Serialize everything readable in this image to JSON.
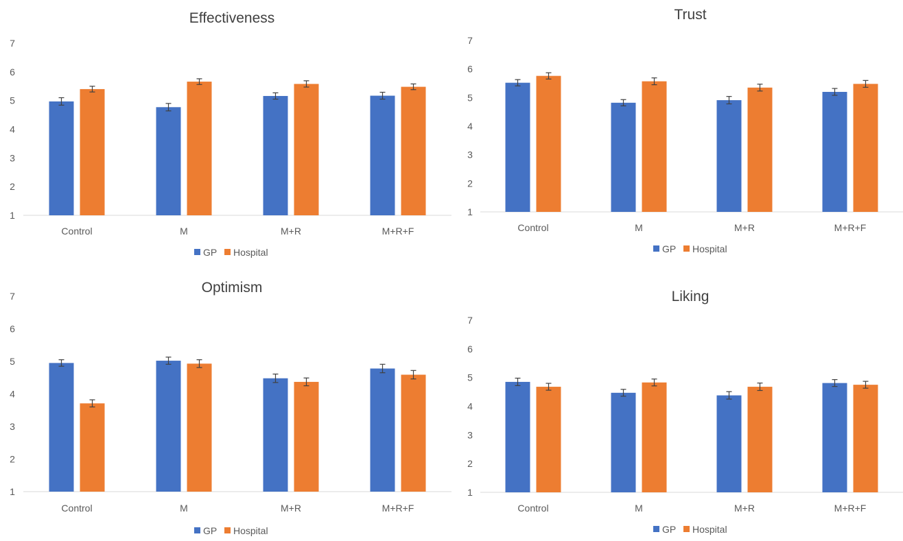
{
  "chart_data": [
    {
      "type": "bar",
      "title": "Effectiveness",
      "categories": [
        "Control",
        "M",
        "M+R",
        "M+R+F"
      ],
      "ylim": [
        1,
        7
      ],
      "yticks": [
        "1",
        "2",
        "3",
        "4",
        "5",
        "6",
        "7"
      ],
      "series": [
        {
          "name": "GP",
          "color": "#4472C4",
          "values": [
            4.97,
            4.77,
            5.16,
            5.17
          ],
          "errors": [
            0.13,
            0.13,
            0.11,
            0.12
          ]
        },
        {
          "name": "Hospital",
          "color": "#ED7D31",
          "values": [
            5.4,
            5.66,
            5.58,
            5.48
          ],
          "errors": [
            0.1,
            0.1,
            0.11,
            0.1
          ]
        }
      ],
      "grid": false,
      "legend": "bottom"
    },
    {
      "type": "bar",
      "title": "Trust",
      "categories": [
        "Control",
        "M",
        "M+R",
        "M+R+F"
      ],
      "ylim": [
        1,
        7
      ],
      "yticks": [
        "1",
        "2",
        "3",
        "4",
        "5",
        "6",
        "7"
      ],
      "series": [
        {
          "name": "GP",
          "color": "#4472C4",
          "values": [
            5.52,
            4.82,
            4.91,
            5.2
          ],
          "errors": [
            0.11,
            0.11,
            0.13,
            0.12
          ]
        },
        {
          "name": "Hospital",
          "color": "#ED7D31",
          "values": [
            5.76,
            5.57,
            5.35,
            5.48
          ],
          "errors": [
            0.11,
            0.12,
            0.12,
            0.12
          ]
        }
      ],
      "grid": false,
      "legend": "bottom"
    },
    {
      "type": "bar",
      "title": "Optimism",
      "categories": [
        "Control",
        "M",
        "M+R",
        "M+R+F"
      ],
      "ylim": [
        1,
        7
      ],
      "yticks": [
        "1",
        "2",
        "3",
        "4",
        "5",
        "6",
        "7"
      ],
      "series": [
        {
          "name": "GP",
          "color": "#4472C4",
          "values": [
            4.95,
            5.02,
            4.48,
            4.78
          ],
          "errors": [
            0.1,
            0.11,
            0.13,
            0.13
          ]
        },
        {
          "name": "Hospital",
          "color": "#ED7D31",
          "values": [
            3.71,
            4.93,
            4.37,
            4.59
          ],
          "errors": [
            0.11,
            0.12,
            0.12,
            0.13
          ]
        }
      ],
      "grid": false,
      "legend": "bottom"
    },
    {
      "type": "bar",
      "title": "Liking",
      "categories": [
        "Control",
        "M",
        "M+R",
        "M+R+F"
      ],
      "ylim": [
        1,
        7
      ],
      "yticks": [
        "1",
        "2",
        "3",
        "4",
        "5",
        "6",
        "7"
      ],
      "series": [
        {
          "name": "GP",
          "color": "#4472C4",
          "values": [
            4.85,
            4.47,
            4.38,
            4.81
          ],
          "errors": [
            0.13,
            0.12,
            0.13,
            0.12
          ]
        },
        {
          "name": "Hospital",
          "color": "#ED7D31",
          "values": [
            4.68,
            4.83,
            4.68,
            4.75
          ],
          "errors": [
            0.12,
            0.12,
            0.13,
            0.12
          ]
        }
      ],
      "grid": false,
      "legend": "bottom"
    }
  ]
}
